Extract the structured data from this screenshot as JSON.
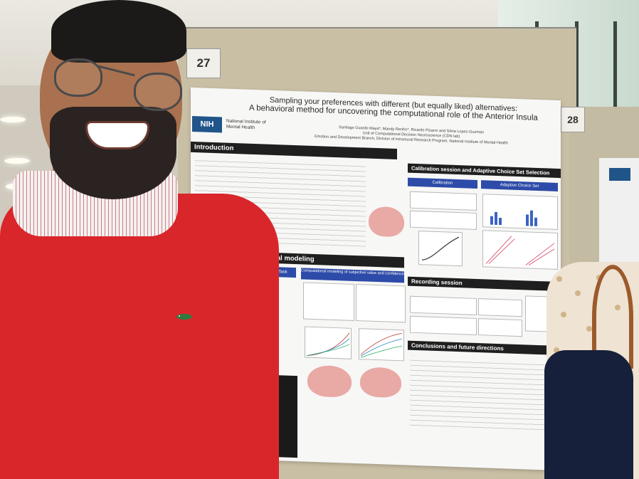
{
  "poster": {
    "board_number": "27",
    "neighbor_board_number": "28",
    "title_line1": "Sampling your preferences with different (but equally liked) alternatives:",
    "title_line2": "A behavioral method for uncovering the computational role of the Anterior Insula",
    "authors": "Santiago Guardo Maya*, Mandy Renfro*, Ricardo Pizarro and Silvia Lopez-Guzman",
    "affiliation": "Unit of Computational Decision Neuroscience (CDN lab)",
    "division": "Emotion and Development Branch, Division of Intramural Research Program, National Institute of Mental Health",
    "logo_text": "NIH",
    "institute_name": "National Institute of Mental Health",
    "sections": {
      "introduction": "Introduction",
      "calibration": "Calibration session and Adaptive Choice Set Selection",
      "modeling": "tational modeling",
      "recording": "Recording session",
      "conclusions": "Conclusions and future directions"
    },
    "subheaders": {
      "calibration": "Calibration",
      "adaptive": "Adaptive Choice Set",
      "task": "Making Task",
      "comp_modeling": "Computational modeling of subjective value and confidence"
    }
  },
  "colors": {
    "sweater": "#d9262b",
    "section_bar": "#1f1f1f",
    "subheader": "#2d4ba8",
    "bag": "#17203a"
  }
}
